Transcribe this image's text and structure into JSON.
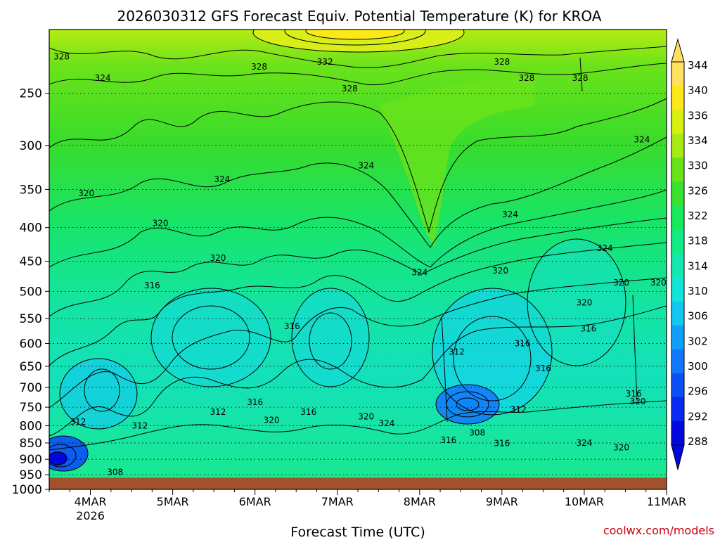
{
  "chart_data": {
    "type": "heatmap",
    "title": "2026030312 GFS Forecast Equiv. Potential Temperature (K) for KROA",
    "xlabel": "Forecast Time (UTC)",
    "ylabel": "",
    "credit": "coolwx.com/models",
    "x_ticks": [
      {
        "label": "4MAR",
        "sub": "2026",
        "day": 4
      },
      {
        "label": "5MAR",
        "sub": "",
        "day": 5
      },
      {
        "label": "6MAR",
        "sub": "",
        "day": 6
      },
      {
        "label": "7MAR",
        "sub": "",
        "day": 7
      },
      {
        "label": "8MAR",
        "sub": "",
        "day": 8
      },
      {
        "label": "9MAR",
        "sub": "",
        "day": 9
      },
      {
        "label": "10MAR",
        "sub": "",
        "day": 10
      },
      {
        "label": "11MAR",
        "sub": "",
        "day": 11
      }
    ],
    "xlim": [
      3.5,
      11.0
    ],
    "y_scale": "log-pressure",
    "y_inverted": true,
    "ylim": [
      1000,
      200
    ],
    "y_ticks": [
      250,
      300,
      350,
      400,
      450,
      500,
      550,
      600,
      650,
      700,
      750,
      800,
      850,
      900,
      950,
      1000
    ],
    "ground_level_hPa": 960,
    "colorbar": {
      "levels": [
        288,
        292,
        296,
        300,
        302,
        306,
        310,
        314,
        318,
        322,
        326,
        330,
        334,
        336,
        340,
        344
      ],
      "colors": [
        "#0008e0",
        "#0a2af2",
        "#0b4ff7",
        "#0f78ff",
        "#10a0fc",
        "#12c8f2",
        "#14e4d8",
        "#14e8ae",
        "#12ea86",
        "#18e85a",
        "#38e030",
        "#6ae21a",
        "#a8ea14",
        "#d8f010",
        "#fce81a",
        "#ffe060"
      ],
      "labels": [
        "344",
        "340",
        "336",
        "334",
        "330",
        "326",
        "322",
        "318",
        "314",
        "310",
        "306",
        "302",
        "300",
        "296",
        "292",
        "288"
      ]
    },
    "contour_labels": [
      {
        "text": "328",
        "day": 3.65,
        "p": 220
      },
      {
        "text": "328",
        "day": 6.05,
        "p": 228
      },
      {
        "text": "332",
        "day": 6.85,
        "p": 224
      },
      {
        "text": "328",
        "day": 7.15,
        "p": 246
      },
      {
        "text": "328",
        "day": 9.0,
        "p": 224
      },
      {
        "text": "328",
        "day": 9.3,
        "p": 237
      },
      {
        "text": "328",
        "day": 9.95,
        "p": 237
      },
      {
        "text": "324",
        "day": 4.15,
        "p": 237
      },
      {
        "text": "324",
        "day": 10.7,
        "p": 294
      },
      {
        "text": "324",
        "day": 7.35,
        "p": 322
      },
      {
        "text": "324",
        "day": 5.6,
        "p": 338
      },
      {
        "text": "324",
        "day": 9.1,
        "p": 382
      },
      {
        "text": "324",
        "day": 10.25,
        "p": 430
      },
      {
        "text": "324",
        "day": 8.0,
        "p": 468
      },
      {
        "text": "320",
        "day": 3.95,
        "p": 355
      },
      {
        "text": "320",
        "day": 4.85,
        "p": 394
      },
      {
        "text": "320",
        "day": 5.55,
        "p": 445
      },
      {
        "text": "320",
        "day": 8.98,
        "p": 465
      },
      {
        "text": "320",
        "day": 10.45,
        "p": 485
      },
      {
        "text": "320",
        "day": 10.9,
        "p": 485
      },
      {
        "text": "320",
        "day": 10.0,
        "p": 520
      },
      {
        "text": "316",
        "day": 4.75,
        "p": 490
      },
      {
        "text": "316",
        "day": 6.45,
        "p": 565
      },
      {
        "text": "316",
        "day": 9.25,
        "p": 600
      },
      {
        "text": "316",
        "day": 9.5,
        "p": 655
      },
      {
        "text": "316",
        "day": 10.05,
        "p": 570
      },
      {
        "text": "316",
        "day": 10.6,
        "p": 716
      },
      {
        "text": "312",
        "day": 8.45,
        "p": 618
      },
      {
        "text": "312",
        "day": 9.2,
        "p": 756
      },
      {
        "text": "312",
        "day": 3.85,
        "p": 790
      },
      {
        "text": "312",
        "day": 4.6,
        "p": 800
      },
      {
        "text": "312",
        "day": 5.55,
        "p": 763
      },
      {
        "text": "316",
        "day": 6.0,
        "p": 737
      },
      {
        "text": "316",
        "day": 6.65,
        "p": 763
      },
      {
        "text": "320",
        "day": 6.2,
        "p": 785
      },
      {
        "text": "320",
        "day": 7.35,
        "p": 775
      },
      {
        "text": "324",
        "day": 7.6,
        "p": 793
      },
      {
        "text": "308",
        "day": 4.3,
        "p": 941
      },
      {
        "text": "308",
        "day": 8.7,
        "p": 820
      },
      {
        "text": "316",
        "day": 8.35,
        "p": 842
      },
      {
        "text": "316",
        "day": 9.0,
        "p": 851
      },
      {
        "text": "324",
        "day": 10.0,
        "p": 850
      },
      {
        "text": "320",
        "day": 10.45,
        "p": 864
      },
      {
        "text": "320",
        "day": 10.65,
        "p": 735
      }
    ]
  }
}
